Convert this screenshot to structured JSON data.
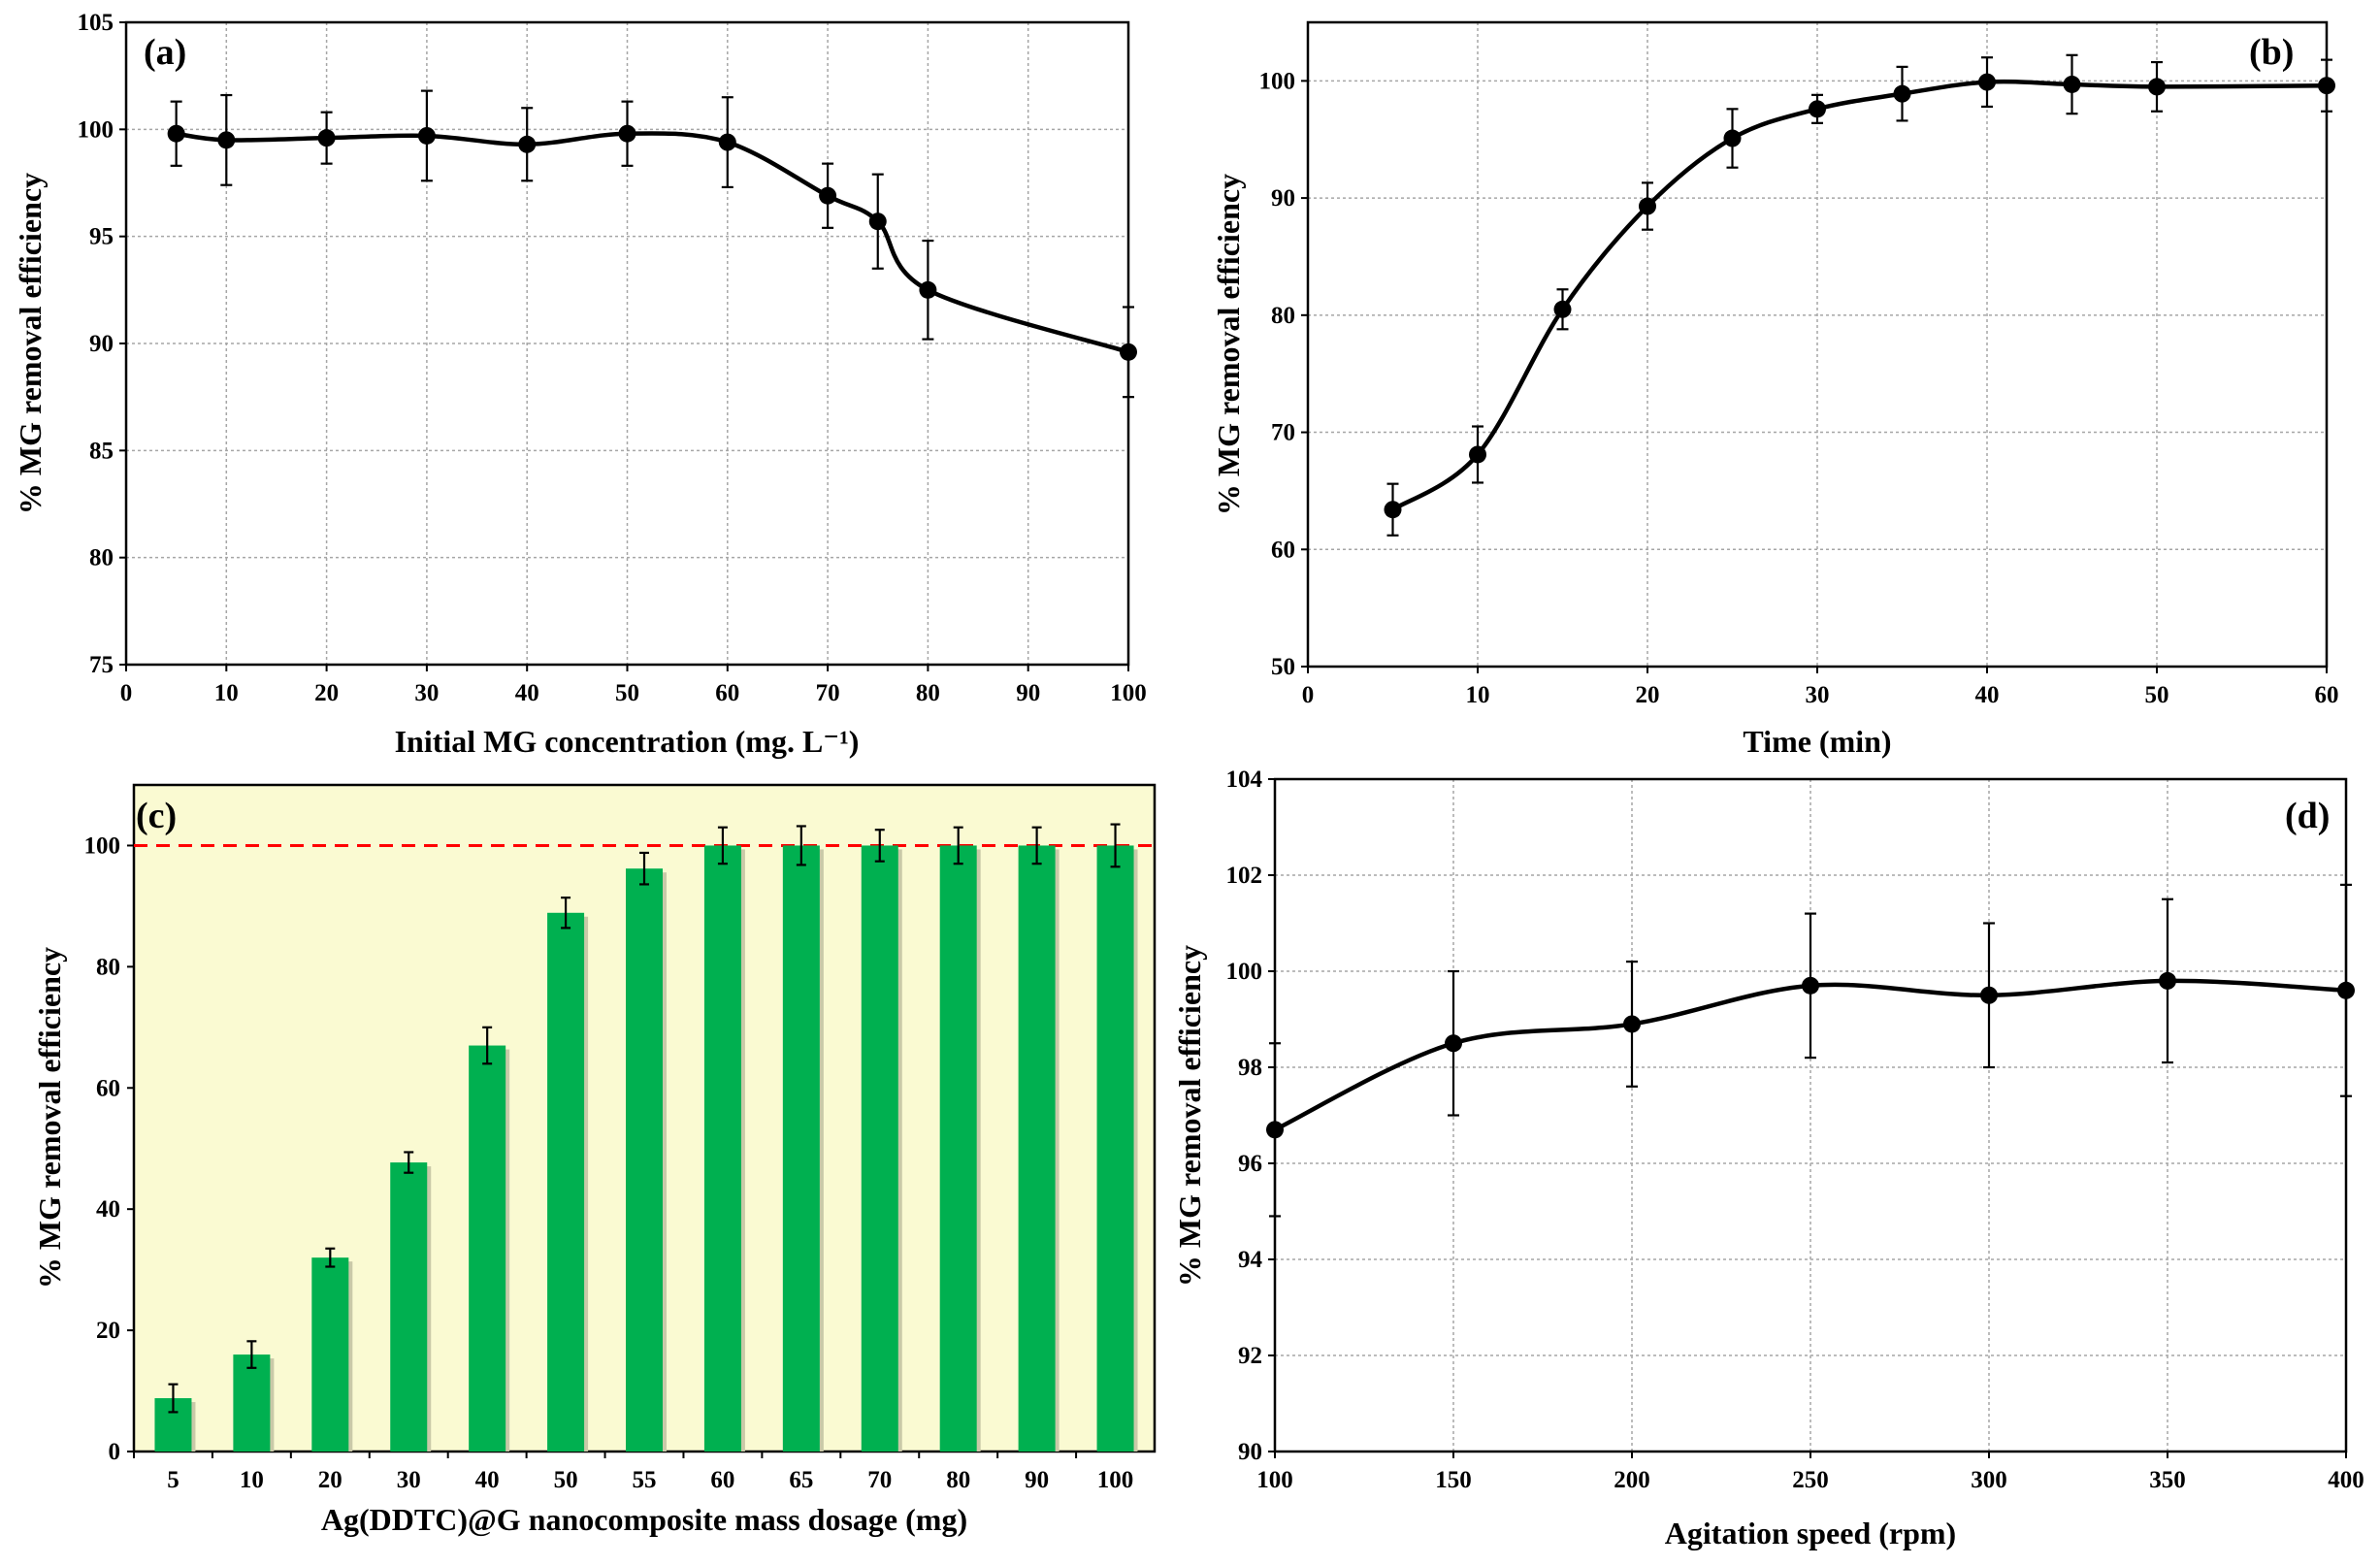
{
  "panel_labels": [
    "(a)",
    "(b)",
    "(c)",
    "(d)"
  ],
  "colors": {
    "line": "#000000",
    "bar": "#00b050",
    "bar_background": "#fafad2",
    "reference_line": "#ff0000",
    "grid": "#a6a6a6"
  },
  "chart_data": [
    {
      "id": "a",
      "type": "line",
      "panel_label": "(a)",
      "xlabel": "Initial MG concentration (mg. L⁻¹)",
      "ylabel": "% MG removal efficiency",
      "xlim": [
        0,
        100
      ],
      "ylim": [
        75,
        105
      ],
      "xticks": [
        0,
        10,
        20,
        30,
        40,
        50,
        60,
        70,
        80,
        90,
        100
      ],
      "yticks": [
        75,
        80,
        85,
        90,
        95,
        100,
        105
      ],
      "x": [
        5,
        10,
        20,
        30,
        40,
        50,
        60,
        70,
        75,
        80,
        100
      ],
      "y": [
        99.8,
        99.5,
        99.6,
        99.7,
        99.3,
        99.8,
        99.4,
        96.9,
        95.7,
        92.5,
        89.6
      ],
      "error": [
        1.5,
        2.1,
        1.2,
        2.1,
        1.7,
        1.5,
        2.1,
        1.5,
        2.2,
        2.3,
        2.1
      ],
      "grid": true
    },
    {
      "id": "b",
      "type": "line",
      "panel_label": "(b)",
      "xlabel": "Time (min)",
      "ylabel": "% MG removal efficiency",
      "xlim": [
        0,
        60
      ],
      "ylim": [
        50,
        105
      ],
      "xticks": [
        0,
        10,
        20,
        30,
        40,
        50,
        60
      ],
      "yticks": [
        50,
        60,
        70,
        80,
        90,
        100
      ],
      "x": [
        5,
        10,
        15,
        20,
        25,
        30,
        35,
        40,
        45,
        50,
        60
      ],
      "y": [
        63.4,
        68.1,
        80.5,
        89.3,
        95.1,
        97.6,
        98.9,
        99.9,
        99.7,
        99.5,
        99.6
      ],
      "error": [
        2.2,
        2.4,
        1.7,
        2.0,
        2.5,
        1.2,
        2.3,
        2.1,
        2.5,
        2.1,
        2.2
      ],
      "grid": true
    },
    {
      "id": "c",
      "type": "bar",
      "panel_label": "(c)",
      "xlabel": "Ag(DDTC)@G nanocomposite mass dosage (mg)",
      "ylabel": "%  MG  removal efficiency",
      "categories": [
        "5",
        "10",
        "20",
        "30",
        "40",
        "50",
        "55",
        "60",
        "65",
        "70",
        "80",
        "90",
        "100"
      ],
      "values": [
        8.8,
        16.0,
        32.0,
        47.7,
        67.0,
        88.9,
        96.2,
        100.0,
        100.0,
        100.0,
        100.0,
        100.0,
        100.0
      ],
      "error": [
        2.3,
        2.2,
        1.5,
        1.7,
        3.0,
        2.5,
        2.6,
        3.0,
        3.2,
        2.6,
        3.0,
        3.0,
        3.5
      ],
      "ylim": [
        0,
        110
      ],
      "yticks": [
        0,
        20,
        40,
        60,
        80,
        100
      ],
      "reference_line": 100,
      "grid": false
    },
    {
      "id": "d",
      "type": "line",
      "panel_label": "(d)",
      "xlabel": "Agitation speed (rpm)",
      "ylabel": "% MG removal efficiency",
      "xlim": [
        100,
        400
      ],
      "ylim": [
        90,
        104
      ],
      "xticks": [
        100,
        150,
        200,
        250,
        300,
        350,
        400
      ],
      "yticks": [
        90,
        92,
        94,
        96,
        98,
        100,
        102,
        104
      ],
      "x": [
        100,
        150,
        200,
        250,
        300,
        350,
        400
      ],
      "y": [
        96.7,
        98.5,
        98.9,
        99.7,
        99.5,
        99.8,
        99.6
      ],
      "error": [
        1.8,
        1.5,
        1.3,
        1.5,
        1.5,
        1.7,
        2.2
      ],
      "grid": true
    }
  ]
}
